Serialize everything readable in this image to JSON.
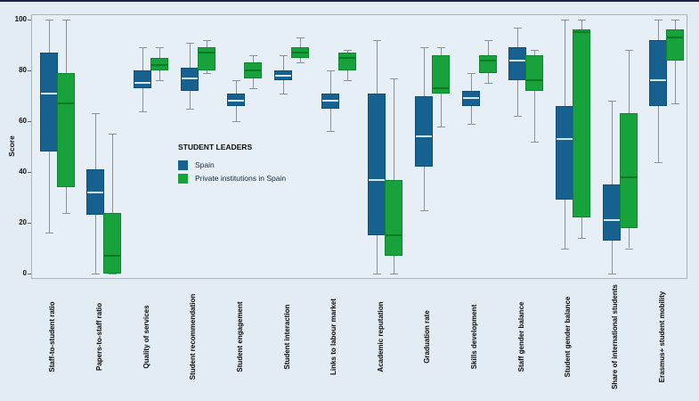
{
  "chart_data": {
    "type": "boxplot",
    "ylabel": "Score",
    "ylim": [
      0,
      100
    ],
    "yticks": [
      0,
      20,
      40,
      60,
      80,
      100
    ],
    "grid": false,
    "legend": {
      "title": "STUDENT LEADERS",
      "position": "inside-left-middle"
    },
    "colors": {
      "spain": "#16618f",
      "private": "#18a23c",
      "spain_median": "#d6e7f0",
      "private_median": "#077a22",
      "whisker": "#8a9198"
    },
    "categories": [
      "Staff-to-student ratio",
      "Papers-to-staff ratio",
      "Quality of services",
      "Student recommendation",
      "Student engagement",
      "Student interaction",
      "Links to labour market",
      "Academic reputation",
      "Graduation rate",
      "Skills development",
      "Staff gender balance",
      "Student gender balance",
      "Share of international students",
      "Erasmus+ student mobility"
    ],
    "box_format": [
      "whisker_low",
      "q1",
      "median",
      "q3",
      "whisker_high"
    ],
    "series": [
      {
        "name": "Spain",
        "color": "#16618f",
        "boxes": [
          [
            16,
            48,
            71,
            87,
            100
          ],
          [
            0,
            23,
            32,
            41,
            63
          ],
          [
            64,
            73,
            75,
            80,
            89
          ],
          [
            65,
            72,
            77,
            81,
            91
          ],
          [
            60,
            66,
            68,
            71,
            76
          ],
          [
            71,
            76,
            78,
            80,
            86
          ],
          [
            56,
            65,
            68,
            71,
            80
          ],
          [
            0,
            15,
            37,
            71,
            92
          ],
          [
            25,
            42,
            54,
            70,
            89
          ],
          [
            59,
            66,
            69,
            72,
            79
          ],
          [
            62,
            76,
            84,
            89,
            97
          ],
          [
            10,
            29,
            53,
            66,
            100
          ],
          [
            0,
            13,
            21,
            35,
            68
          ],
          [
            44,
            66,
            76,
            92,
            100
          ]
        ]
      },
      {
        "name": "Private institutions in Spain",
        "color": "#18a23c",
        "boxes": [
          [
            24,
            34,
            67,
            79,
            100
          ],
          [
            0,
            0,
            7,
            24,
            55
          ],
          [
            76,
            80,
            82,
            85,
            89
          ],
          [
            79,
            80,
            87,
            89,
            92
          ],
          [
            73,
            77,
            80,
            83,
            86
          ],
          [
            83,
            85,
            87,
            89,
            93
          ],
          [
            76,
            80,
            85,
            87,
            88
          ],
          [
            0,
            7,
            15,
            37,
            77
          ],
          [
            58,
            71,
            73,
            86,
            89
          ],
          [
            75,
            79,
            84,
            86,
            92
          ],
          [
            52,
            72,
            76,
            86,
            88
          ],
          [
            14,
            22,
            95,
            96,
            100
          ],
          [
            10,
            18,
            38,
            63,
            88
          ],
          [
            67,
            84,
            93,
            96,
            100
          ]
        ]
      }
    ]
  }
}
